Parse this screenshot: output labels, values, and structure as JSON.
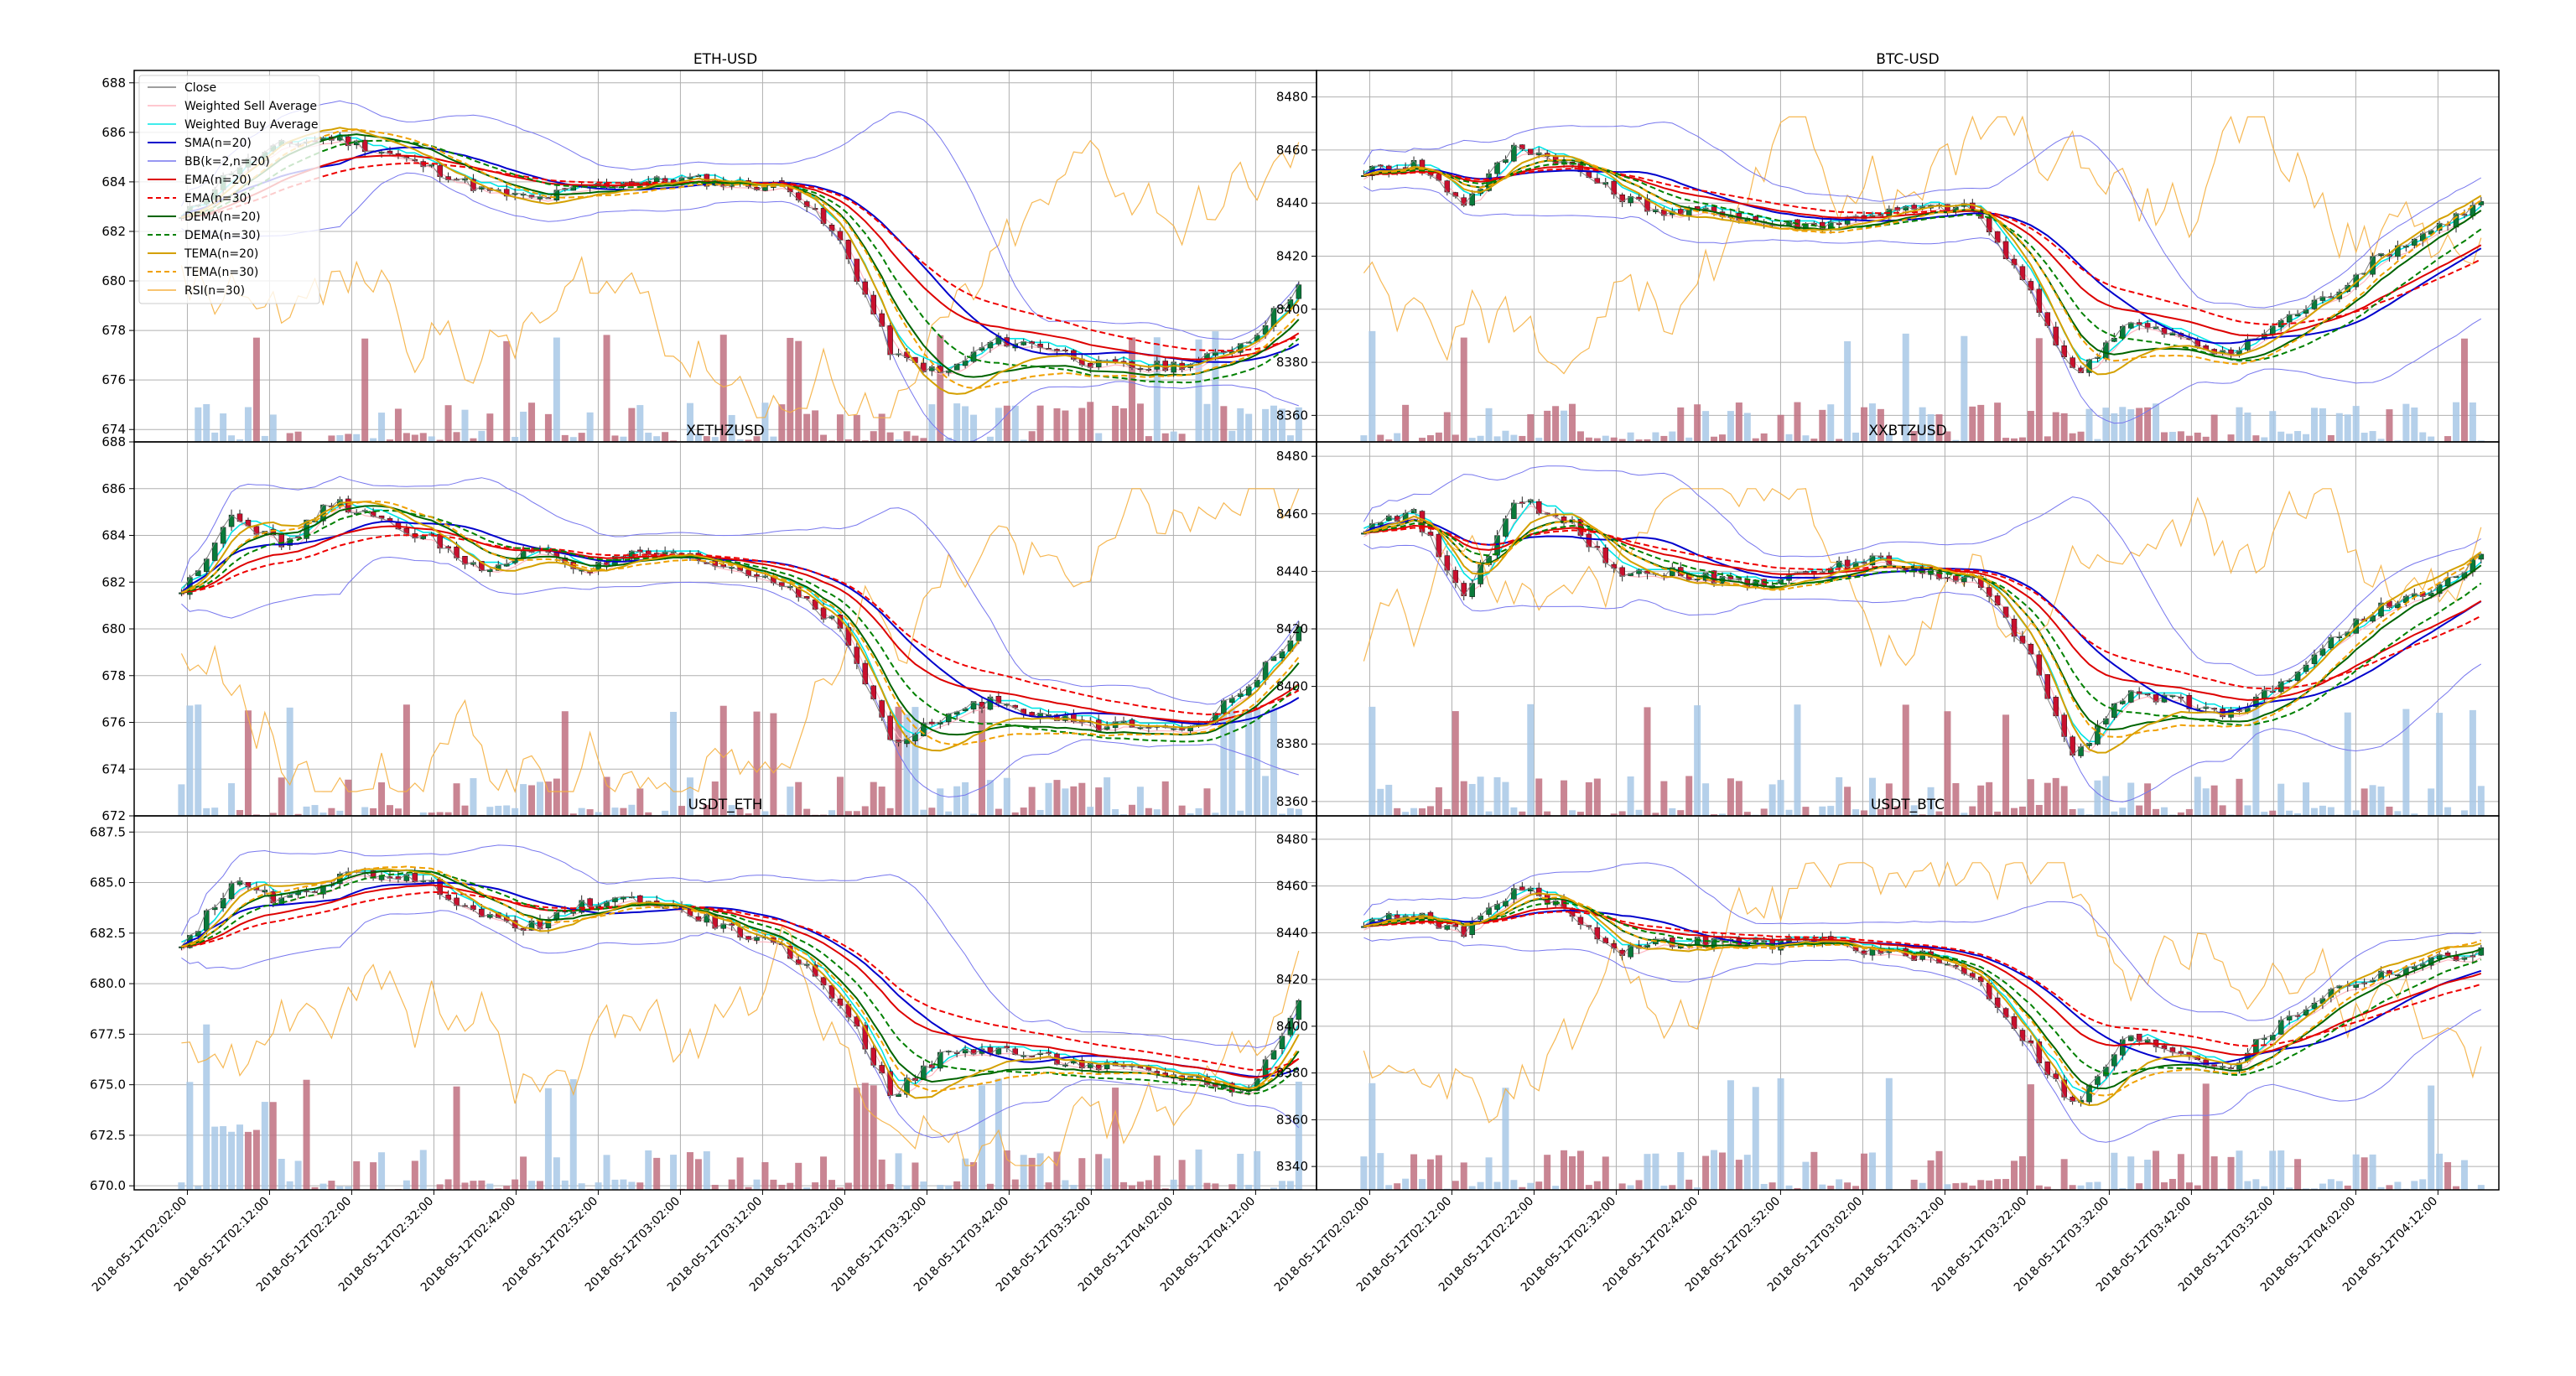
{
  "figure": {
    "legend": [
      {
        "label": "Close",
        "color": "#7f7f7f",
        "style": "solid",
        "width": 1
      },
      {
        "label": "Weighted Sell Average",
        "color": "#ffb6c1",
        "style": "solid",
        "width": 1.2
      },
      {
        "label": "Weighted Buy Average",
        "color": "#00e5e5",
        "style": "solid",
        "width": 1.6
      },
      {
        "label": "SMA(n=20)",
        "color": "#0000cc",
        "style": "solid",
        "width": 2
      },
      {
        "label": "BB(k=2,n=20)",
        "color": "#7777ee",
        "style": "solid",
        "width": 1
      },
      {
        "label": "EMA(n=20)",
        "color": "#dd0000",
        "style": "solid",
        "width": 2
      },
      {
        "label": "EMA(n=30)",
        "color": "#ee0000",
        "style": "dashed",
        "width": 2
      },
      {
        "label": "DEMA(n=20)",
        "color": "#006400",
        "style": "solid",
        "width": 2
      },
      {
        "label": "DEMA(n=30)",
        "color": "#008000",
        "style": "dashed",
        "width": 2
      },
      {
        "label": "TEMA(n=20)",
        "color": "#d4a000",
        "style": "solid",
        "width": 2
      },
      {
        "label": "TEMA(n=30)",
        "color": "#f0a000",
        "style": "dashed",
        "width": 2
      },
      {
        "label": "RSI(n=30)",
        "color": "#f5b041",
        "style": "solid",
        "width": 1
      }
    ],
    "x_tick_labels": [
      "2018-05-12T02:02:00",
      "2018-05-12T02:12:00",
      "2018-05-12T02:22:00",
      "2018-05-12T02:32:00",
      "2018-05-12T02:42:00",
      "2018-05-12T02:52:00",
      "2018-05-12T03:02:00",
      "2018-05-12T03:12:00",
      "2018-05-12T03:22:00",
      "2018-05-12T03:32:00",
      "2018-05-12T03:42:00",
      "2018-05-12T03:52:00",
      "2018-05-12T04:02:00",
      "2018-05-12T04:12:00"
    ],
    "volume_colors": {
      "up": "#a8c8e6",
      "down": "#c07080"
    },
    "candle_colors": {
      "up": "#0a7a3a",
      "down": "#c8102e"
    }
  },
  "chart_data": [
    {
      "type": "candlestick",
      "title": "ETH-USD",
      "ylim": [
        673.5,
        688.5
      ],
      "yticks": [
        674,
        676,
        678,
        680,
        682,
        684,
        686,
        688
      ],
      "ytick_labels": [
        "674",
        "676",
        "678",
        "680",
        "682",
        "684",
        "686",
        "688"
      ],
      "grid": true,
      "legend_position": "top-left",
      "close": [
        682.5,
        684.5,
        685.5,
        685.8,
        685.2,
        684.5,
        683.6,
        683.3,
        683.8,
        684.0,
        684.1,
        683.9,
        683.8,
        681.5,
        677.0,
        676.2,
        677.6,
        677.4,
        676.6,
        676.5,
        676.7,
        677.6,
        679.8
      ]
    },
    {
      "type": "candlestick",
      "title": "BTC-USD",
      "ylim": [
        8350,
        8490
      ],
      "yticks": [
        8360,
        8380,
        8400,
        8420,
        8440,
        8460,
        8480
      ],
      "ytick_labels": [
        "8360",
        "8380",
        "8400",
        "8420",
        "8440",
        "8460",
        "8480"
      ],
      "grid": true,
      "close": [
        8452,
        8455,
        8440,
        8462,
        8455,
        8443,
        8436,
        8437,
        8432,
        8432,
        8436,
        8438,
        8438,
        8410,
        8375,
        8395,
        8390,
        8382,
        8395,
        8405,
        8420,
        8430,
        8440
      ]
    },
    {
      "type": "candlestick",
      "title": "XETHZUSD",
      "ylim": [
        672,
        688
      ],
      "yticks": [
        672,
        674,
        676,
        678,
        680,
        682,
        684,
        686,
        688
      ],
      "ytick_labels": [
        "672",
        "674",
        "676",
        "678",
        "680",
        "682",
        "684",
        "686",
        "688"
      ],
      "grid": true,
      "close": [
        681.5,
        685.0,
        683.5,
        685.5,
        684.5,
        683.8,
        682.3,
        683.5,
        682.5,
        683.2,
        683.0,
        682.5,
        681.8,
        680.0,
        675.0,
        676.2,
        677.0,
        676.3,
        675.8,
        676.0,
        675.8,
        677.5,
        680.0
      ]
    },
    {
      "type": "candlestick",
      "title": "XXBTZUSD",
      "ylim": [
        8355,
        8485
      ],
      "yticks": [
        8360,
        8380,
        8400,
        8420,
        8440,
        8460,
        8480
      ],
      "ytick_labels": [
        "8360",
        "8380",
        "8400",
        "8420",
        "8440",
        "8460",
        "8480"
      ],
      "grid": true,
      "close": [
        8455,
        8460,
        8430,
        8465,
        8458,
        8440,
        8440,
        8437,
        8436,
        8440,
        8445,
        8440,
        8437,
        8415,
        8375,
        8398,
        8395,
        8390,
        8400,
        8415,
        8428,
        8432,
        8445
      ]
    },
    {
      "type": "candlestick",
      "title": "USDT_ETH",
      "ylim": [
        669.8,
        688.3
      ],
      "yticks": [
        670.0,
        672.5,
        675.0,
        677.5,
        680.0,
        682.5,
        685.0,
        687.5
      ],
      "ytick_labels": [
        "670.0",
        "672.5",
        "675.0",
        "677.5",
        "680.0",
        "682.5",
        "685.0",
        "687.5"
      ],
      "grid": true,
      "close": [
        681.8,
        685.0,
        684.0,
        685.2,
        685.5,
        684.8,
        683.2,
        682.8,
        684.0,
        684.2,
        683.5,
        682.5,
        681.5,
        679.0,
        674.5,
        676.5,
        676.8,
        676.3,
        675.9,
        675.6,
        675.3,
        674.6,
        679.0
      ]
    },
    {
      "type": "candlestick",
      "title": "USDT_BTC",
      "ylim": [
        8330,
        8490
      ],
      "yticks": [
        8340,
        8360,
        8380,
        8400,
        8420,
        8440,
        8460,
        8480
      ],
      "ytick_labels": [
        "8340",
        "8360",
        "8380",
        "8400",
        "8420",
        "8440",
        "8460",
        "8480"
      ],
      "grid": true,
      "close": [
        8445,
        8448,
        8440,
        8460,
        8450,
        8432,
        8436,
        8436,
        8435,
        8437,
        8432,
        8430,
        8422,
        8395,
        8365,
        8395,
        8390,
        8382,
        8400,
        8415,
        8422,
        8428,
        8432
      ]
    }
  ]
}
